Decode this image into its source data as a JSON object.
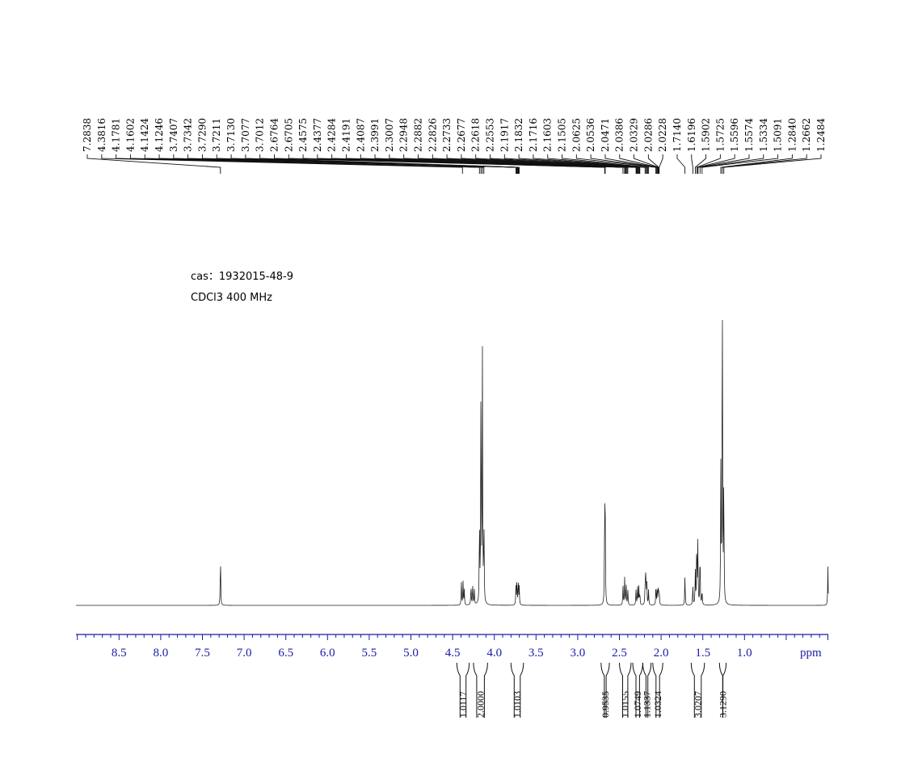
{
  "info": {
    "cas": "cas：1932015-48-9",
    "solvent": "CDCl3  400 MHz"
  },
  "chart_data": {
    "type": "line",
    "title": "",
    "xlabel": "ppm",
    "ylabel": "",
    "xlim": [
      9.0,
      0.0
    ],
    "x_ticks": [
      8.5,
      8.0,
      7.5,
      7.0,
      6.5,
      6.0,
      5.5,
      5.0,
      4.5,
      4.0,
      3.5,
      3.0,
      2.5,
      2.0,
      1.5,
      1.0
    ],
    "peak_labels": [
      "7.2838",
      "4.3816",
      "4.1781",
      "4.1602",
      "4.1424",
      "4.1246",
      "3.7407",
      "3.7342",
      "3.7290",
      "3.7211",
      "3.7130",
      "3.7077",
      "3.7012",
      "2.6764",
      "2.6705",
      "2.4575",
      "2.4377",
      "2.4284",
      "2.4191",
      "2.4087",
      "2.3991",
      "2.3007",
      "2.2948",
      "2.2882",
      "2.2826",
      "2.2733",
      "2.2677",
      "2.2618",
      "2.2553",
      "2.1917",
      "2.1832",
      "2.1716",
      "2.1603",
      "2.1505",
      "2.0625",
      "2.0536",
      "2.0471",
      "2.0386",
      "2.0329",
      "2.0286",
      "2.0228",
      "1.7140",
      "1.6196",
      "1.5902",
      "1.5725",
      "1.5596",
      "1.5574",
      "1.5334",
      "1.5091",
      "1.2840",
      "1.2662",
      "1.2484"
    ],
    "integrals": [
      {
        "label": "1.0117",
        "from": 4.45,
        "to": 4.3
      },
      {
        "label": "2.0000",
        "from": 4.25,
        "to": 4.08
      },
      {
        "label": "1.0103",
        "from": 3.8,
        "to": 3.65
      },
      {
        "label": "0.9535",
        "from": 2.72,
        "to": 2.62
      },
      {
        "label": "1.0155",
        "from": 2.5,
        "to": 2.36
      },
      {
        "label": "1.0749",
        "from": 2.34,
        "to": 2.22
      },
      {
        "label": "1.1337",
        "from": 2.22,
        "to": 2.12
      },
      {
        "label": "1.0324",
        "from": 2.1,
        "to": 1.98
      },
      {
        "label": "3.0207",
        "from": 1.64,
        "to": 1.48
      },
      {
        "label": "3.1290",
        "from": 1.3,
        "to": 1.22
      }
    ],
    "peaks": [
      {
        "ppm": 7.2838,
        "height": 0.1
      },
      {
        "ppm": 4.395,
        "height": 0.045
      },
      {
        "ppm": 4.375,
        "height": 0.045
      },
      {
        "ppm": 4.36,
        "height": 0.03
      },
      {
        "ppm": 4.28,
        "height": 0.04
      },
      {
        "ppm": 4.26,
        "height": 0.04
      },
      {
        "ppm": 4.24,
        "height": 0.03
      },
      {
        "ppm": 4.1781,
        "height": 0.16
      },
      {
        "ppm": 4.1602,
        "height": 0.47
      },
      {
        "ppm": 4.1424,
        "height": 0.48
      },
      {
        "ppm": 4.1246,
        "height": 0.16
      },
      {
        "ppm": 3.7407,
        "height": 0.035
      },
      {
        "ppm": 3.729,
        "height": 0.05
      },
      {
        "ppm": 3.713,
        "height": 0.05
      },
      {
        "ppm": 3.7012,
        "height": 0.035
      },
      {
        "ppm": 2.6764,
        "height": 0.19
      },
      {
        "ppm": 2.6705,
        "height": 0.15
      },
      {
        "ppm": 2.4575,
        "height": 0.04
      },
      {
        "ppm": 2.4377,
        "height": 0.055
      },
      {
        "ppm": 2.4191,
        "height": 0.045
      },
      {
        "ppm": 2.3991,
        "height": 0.03
      },
      {
        "ppm": 2.3007,
        "height": 0.03
      },
      {
        "ppm": 2.2826,
        "height": 0.035
      },
      {
        "ppm": 2.2677,
        "height": 0.035
      },
      {
        "ppm": 2.2553,
        "height": 0.025
      },
      {
        "ppm": 2.1917,
        "height": 0.045
      },
      {
        "ppm": 2.1832,
        "height": 0.07
      },
      {
        "ppm": 2.1716,
        "height": 0.045
      },
      {
        "ppm": 2.1505,
        "height": 0.03
      },
      {
        "ppm": 2.0625,
        "height": 0.035
      },
      {
        "ppm": 2.0471,
        "height": 0.04
      },
      {
        "ppm": 2.0329,
        "height": 0.04
      },
      {
        "ppm": 2.0228,
        "height": 0.03
      },
      {
        "ppm": 1.714,
        "height": 0.06
      },
      {
        "ppm": 1.6196,
        "height": 0.04
      },
      {
        "ppm": 1.5902,
        "height": 0.07
      },
      {
        "ppm": 1.5725,
        "height": 0.13
      },
      {
        "ppm": 1.5596,
        "height": 0.12
      },
      {
        "ppm": 1.5334,
        "height": 0.11
      },
      {
        "ppm": 1.5091,
        "height": 0.03
      },
      {
        "ppm": 1.284,
        "height": 0.26
      },
      {
        "ppm": 1.2662,
        "height": 0.68
      },
      {
        "ppm": 1.2484,
        "height": 0.25
      },
      {
        "ppm": 0.0,
        "height": 0.075
      }
    ]
  }
}
